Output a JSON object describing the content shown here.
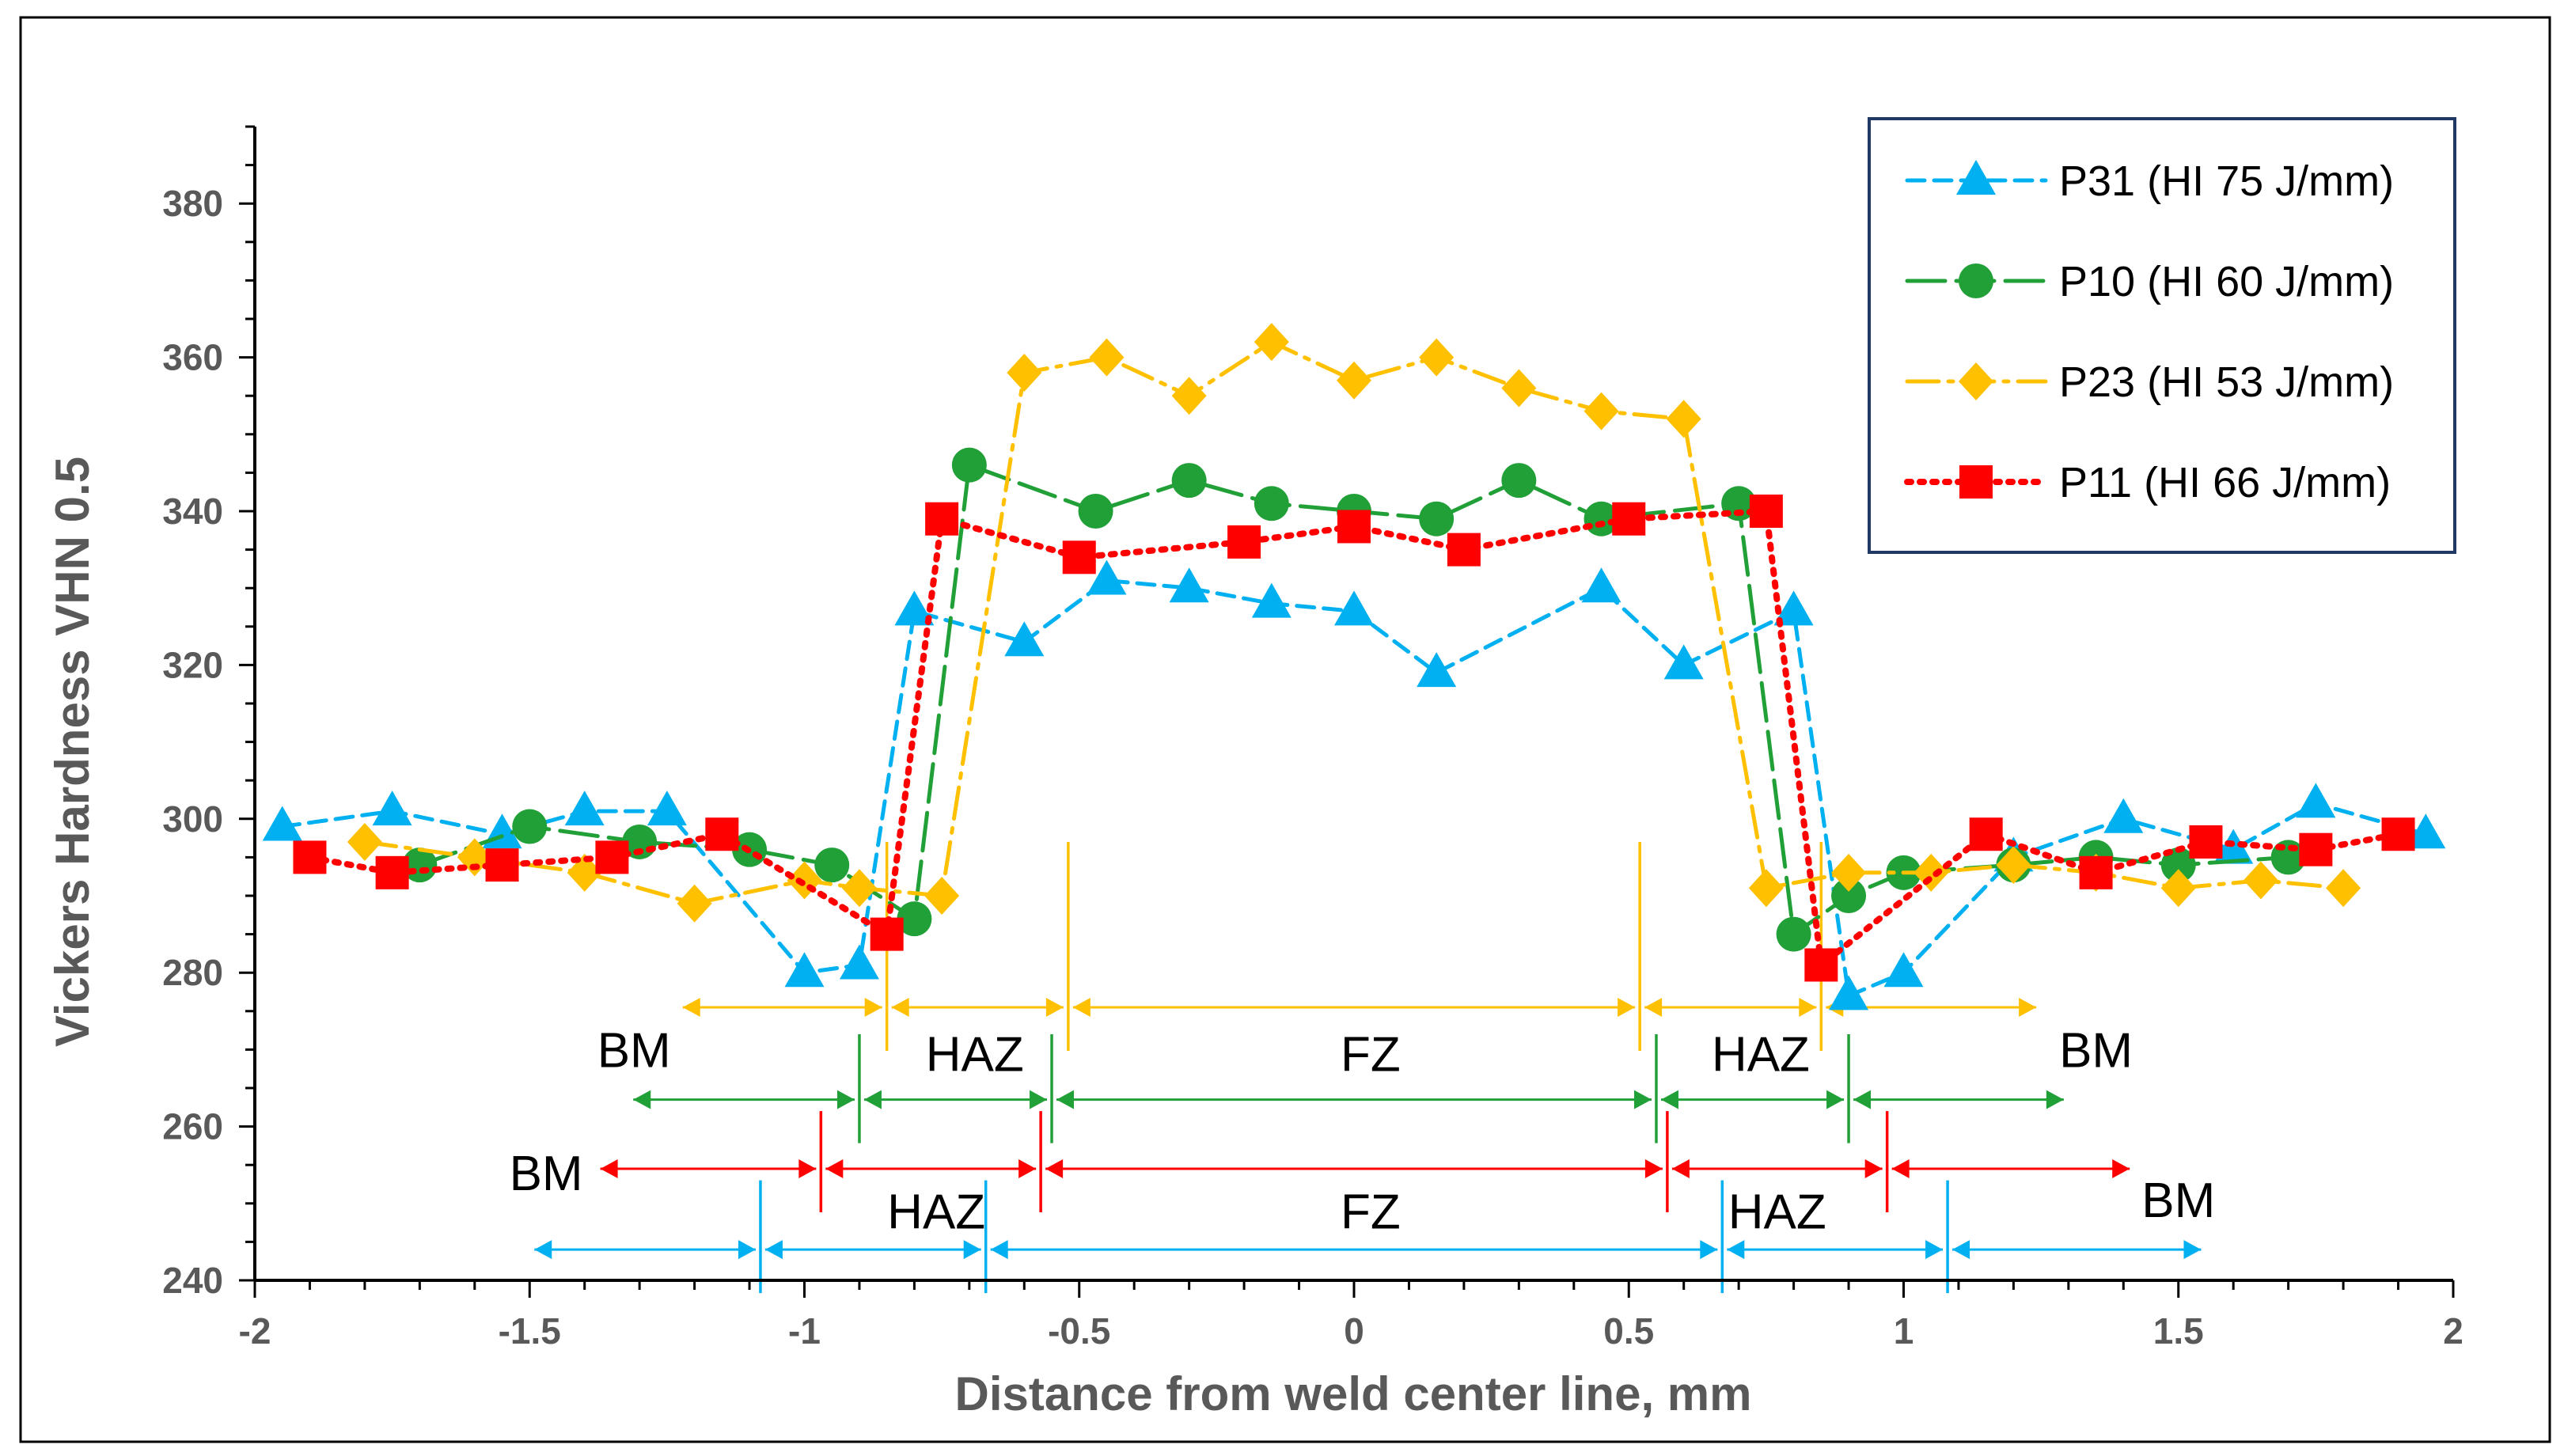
{
  "chart_data": {
    "type": "line",
    "title": "",
    "xlabel": "Distance from weld center line, mm",
    "ylabel": "Vickers Hardness VHN 0.5",
    "xlim": [
      -2,
      2
    ],
    "ylim": [
      240,
      390
    ],
    "xticks": [
      -2,
      -1.5,
      -1,
      -0.5,
      0,
      0.5,
      1,
      1.5,
      2
    ],
    "xtick_labels": [
      "-2",
      "-1.5",
      "-1",
      "-0.5",
      "0",
      "0.5",
      "1",
      "1.5",
      "2"
    ],
    "yticks": [
      240,
      260,
      280,
      300,
      320,
      340,
      360,
      380
    ],
    "ytick_labels": [
      "240",
      "260",
      "280",
      "300",
      "320",
      "340",
      "360",
      "380"
    ],
    "legend_position": "top-right",
    "series": [
      {
        "name": "P31 (HI 75 J/mm)",
        "color": "#00B0F0",
        "marker": "triangle",
        "dash": "dash",
        "x": [
          -1.95,
          -1.75,
          -1.55,
          -1.4,
          -1.25,
          -1.0,
          -0.9,
          -0.8,
          -0.6,
          -0.45,
          -0.3,
          -0.15,
          0.0,
          0.15,
          0.45,
          0.6,
          0.8,
          0.9,
          1.0,
          1.2,
          1.4,
          1.6,
          1.75,
          1.95
        ],
        "y": [
          299,
          301,
          298,
          301,
          301,
          280,
          281,
          327,
          323,
          331,
          330,
          328,
          327,
          319,
          330,
          320,
          327,
          277,
          280,
          295,
          300,
          296,
          302,
          298
        ]
      },
      {
        "name": "P10 (HI 60 J/mm)",
        "color": "#22A038",
        "marker": "circle",
        "dash": "longdash",
        "x": [
          -1.7,
          -1.5,
          -1.3,
          -1.1,
          -0.95,
          -0.8,
          -0.7,
          -0.47,
          -0.3,
          -0.15,
          0.0,
          0.15,
          0.3,
          0.45,
          0.7,
          0.8,
          0.9,
          1.0,
          1.2,
          1.35,
          1.5,
          1.7
        ],
        "y": [
          294,
          299,
          297,
          296,
          294,
          287,
          346,
          340,
          344,
          341,
          340,
          339,
          344,
          339,
          341,
          285,
          290,
          293,
          294,
          295,
          294,
          295
        ]
      },
      {
        "name": "P23 (HI 53 J/mm)",
        "color": "#FFC000",
        "marker": "diamond",
        "dash": "dashdot",
        "x": [
          -1.8,
          -1.6,
          -1.4,
          -1.2,
          -1.0,
          -0.9,
          -0.75,
          -0.6,
          -0.45,
          -0.3,
          -0.15,
          0.0,
          0.15,
          0.3,
          0.45,
          0.6,
          0.75,
          0.9,
          1.05,
          1.2,
          1.35,
          1.5,
          1.65,
          1.8
        ],
        "y": [
          297,
          295,
          293,
          289,
          292,
          291,
          290,
          358,
          360,
          355,
          362,
          357,
          360,
          356,
          353,
          352,
          291,
          293,
          293,
          294,
          293,
          291,
          292,
          291
        ]
      },
      {
        "name": "P11 (HI 66 J/mm)",
        "color": "#FF0000",
        "marker": "square",
        "dash": "dot",
        "x": [
          -1.9,
          -1.75,
          -1.55,
          -1.35,
          -1.15,
          -0.85,
          -0.75,
          -0.5,
          -0.2,
          0.0,
          0.2,
          0.5,
          0.75,
          0.85,
          1.15,
          1.35,
          1.55,
          1.75,
          1.9
        ],
        "y": [
          295,
          293,
          294,
          295,
          298,
          285,
          339,
          334,
          336,
          338,
          335,
          339,
          340,
          281,
          298,
          293,
          297,
          296,
          298
        ]
      }
    ],
    "zone_markers": [
      {
        "color": "#FFC000",
        "y": 275.5,
        "boundaries": [
          -0.85,
          -0.52,
          0.52,
          0.85
        ],
        "ticks": [
          -0.52,
          0.52
        ],
        "tick_top": 297,
        "span": [
          -1.23,
          1.25
        ]
      },
      {
        "color": "#22A038",
        "y": 263.5,
        "boundaries": [
          -0.9,
          -0.55,
          0.55,
          0.9
        ],
        "ticks": [
          -0.9,
          -0.55,
          0.55,
          0.9
        ],
        "tick_top": 272,
        "span": [
          -1.32,
          1.3
        ]
      },
      {
        "color": "#FF0000",
        "y": 254.5,
        "boundaries": [
          -0.97,
          -0.57,
          0.57,
          0.97
        ],
        "ticks": [
          -0.97,
          -0.57,
          0.57,
          0.97
        ],
        "tick_top": 262,
        "span": [
          -1.38,
          1.42
        ]
      },
      {
        "color": "#00B0F0",
        "y": 244,
        "boundaries": [
          -1.08,
          -0.67,
          0.67,
          1.08
        ],
        "ticks": [
          -1.08,
          -0.67,
          0.67,
          1.08
        ],
        "tick_top": 253,
        "span": [
          -1.5,
          1.55
        ]
      }
    ],
    "zone_labels": [
      {
        "text": "BM",
        "x": -1.31,
        "y": 270
      },
      {
        "text": "HAZ",
        "x": -0.69,
        "y": 269.5
      },
      {
        "text": "FZ",
        "x": 0.03,
        "y": 269.5
      },
      {
        "text": "HAZ",
        "x": 0.74,
        "y": 269.5
      },
      {
        "text": "BM",
        "x": 1.35,
        "y": 270
      },
      {
        "text": "BM",
        "x": -1.47,
        "y": 254
      },
      {
        "text": "HAZ",
        "x": -0.76,
        "y": 249
      },
      {
        "text": "FZ",
        "x": 0.03,
        "y": 249
      },
      {
        "text": "HAZ",
        "x": 0.77,
        "y": 249
      },
      {
        "text": "BM",
        "x": 1.5,
        "y": 250.5
      }
    ]
  }
}
